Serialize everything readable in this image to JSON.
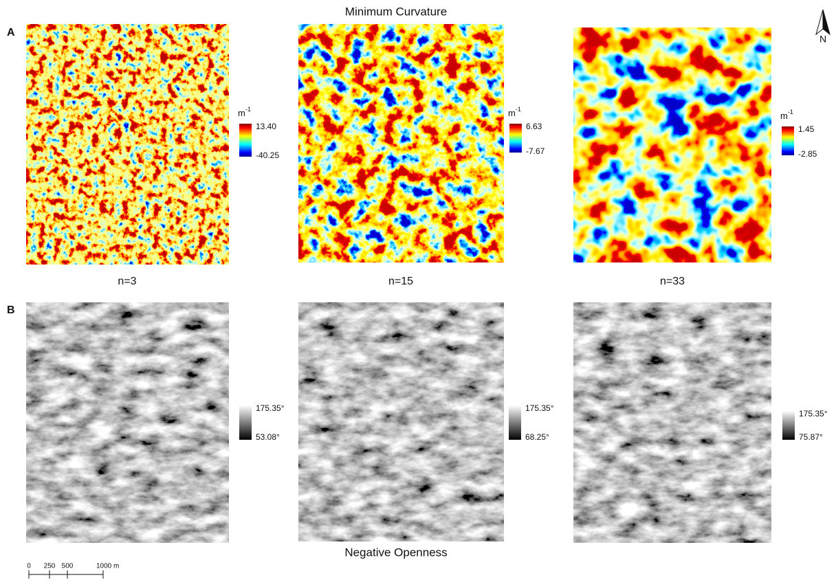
{
  "figure_title": "Minimum Curvature",
  "bottom_title": "Negative Openness",
  "panel_labels": [
    "A",
    "B"
  ],
  "row_a": [
    {
      "label": "n=3",
      "unit": "m",
      "unit_exp": "-1",
      "max": "13.40",
      "min": "-40.25"
    },
    {
      "label": "n=15",
      "unit": "m",
      "unit_exp": "-1",
      "max": "6.63",
      "min": "-7.67"
    },
    {
      "label": "n=33",
      "unit": "m",
      "unit_exp": "-1",
      "max": "1.45",
      "min": "-2.85"
    }
  ],
  "row_b": [
    {
      "max": "175.35°",
      "min": "53.08°"
    },
    {
      "max": "175.35°",
      "min": "68.25°"
    },
    {
      "max": "175.35°",
      "min": "75.87°"
    }
  ],
  "scale_bar": {
    "ticks": [
      "0",
      "250",
      "500"
    ],
    "end": "1000 m"
  },
  "north": "N"
}
